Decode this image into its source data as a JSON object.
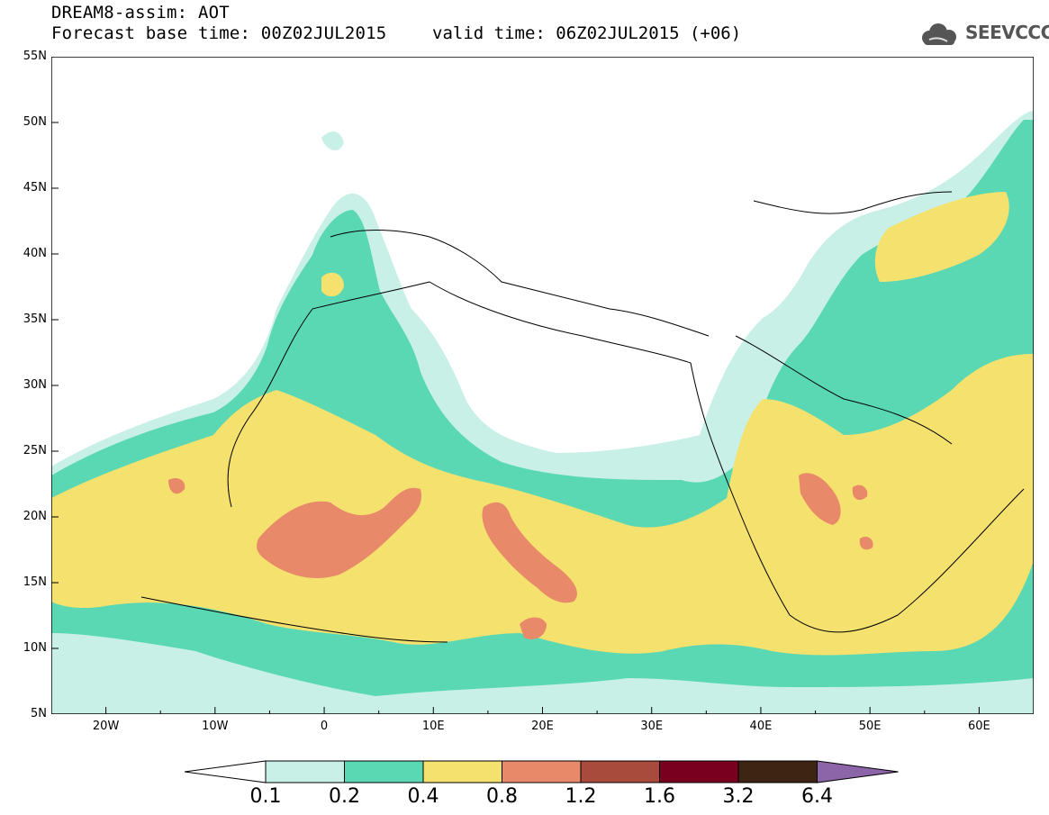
{
  "header": {
    "line1": "DREAM8-assim: AOT",
    "line2": "Forecast base time: 00Z02JUL2015",
    "valid": "valid time: 06Z02JUL2015 (+06)"
  },
  "logo": {
    "text": "SEEVCCC",
    "icon": "cloud-logo-icon"
  },
  "axes": {
    "lat_labels": [
      "55N",
      "50N",
      "45N",
      "40N",
      "35N",
      "30N",
      "25N",
      "20N",
      "15N",
      "10N",
      "5N"
    ],
    "lon_labels": [
      "20W",
      "10W",
      "0",
      "10E",
      "20E",
      "30E",
      "40E",
      "50E",
      "60E"
    ],
    "lon_range": [
      -25,
      65
    ],
    "lat_range": [
      5,
      55
    ]
  },
  "legend": {
    "thresholds": [
      "0.1",
      "0.2",
      "0.4",
      "0.8",
      "1.2",
      "1.6",
      "3.2",
      "6.4"
    ],
    "colors": [
      "#ffffff",
      "#c8f0e6",
      "#5ad8b4",
      "#f5e16e",
      "#e8896a",
      "#a84a3c",
      "#7a0020",
      "#3e2412",
      "#8c64a8"
    ]
  },
  "chart_data": {
    "type": "heatmap",
    "variable": "AOT",
    "levels": [
      0.1,
      0.2,
      0.4,
      0.8,
      1.2,
      1.6,
      3.2,
      6.4
    ]
  }
}
